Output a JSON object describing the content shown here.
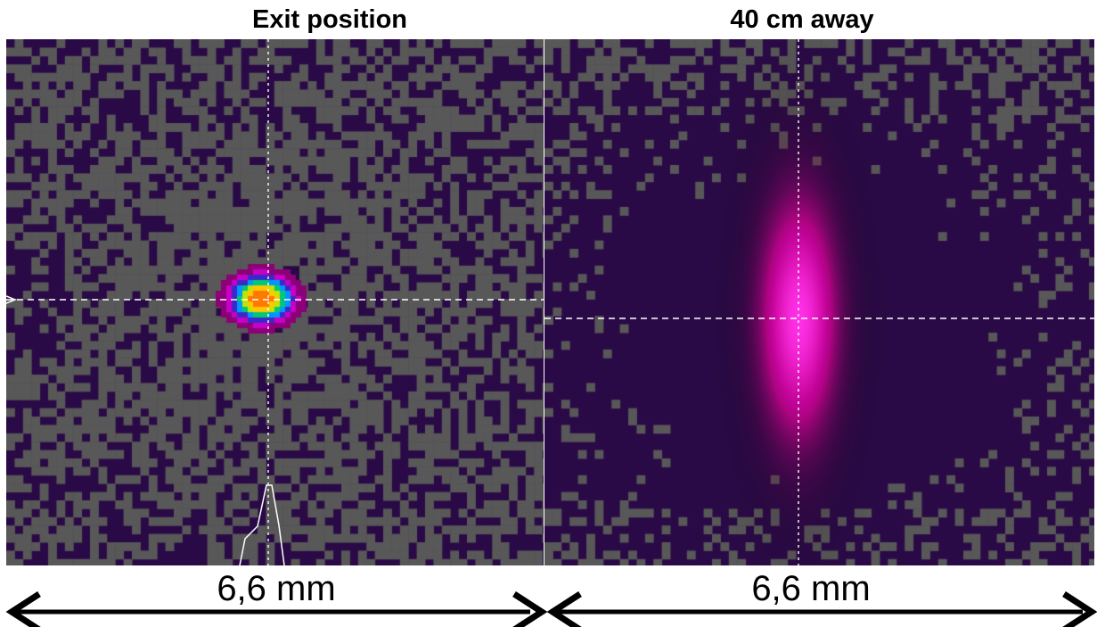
{
  "panels": {
    "left": {
      "title": "Exit position",
      "scale_label": "6,6 mm"
    },
    "right": {
      "title": "40 cm away",
      "scale_label": "6,6 mm"
    }
  },
  "colors": {
    "background": "#2a0a46",
    "noise_gray": "#585858",
    "crosshair": "#ffffff",
    "arrow": "#000000"
  }
}
